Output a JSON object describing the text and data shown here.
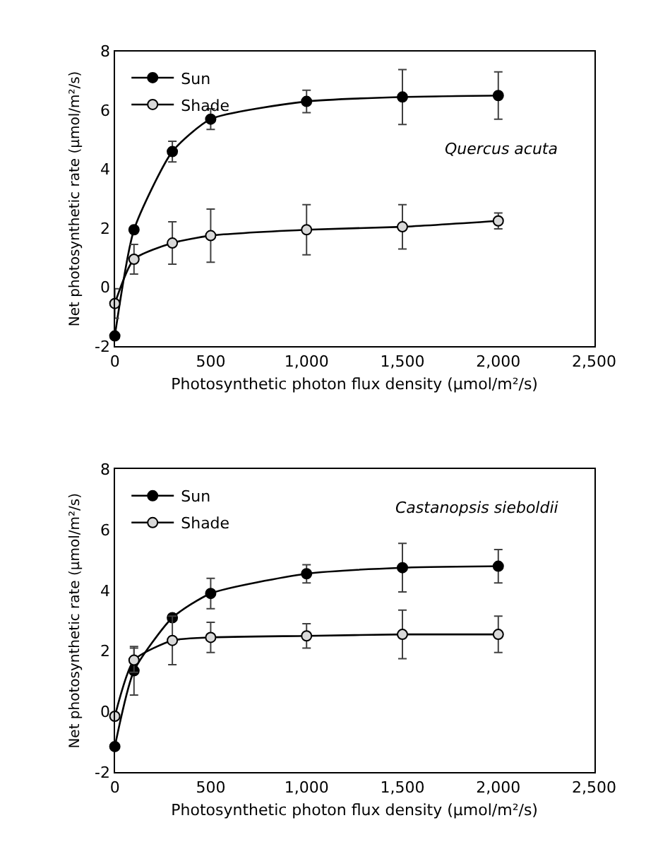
{
  "chart_data": [
    {
      "type": "line",
      "xlabel": "Photosynthetic photon flux density (μmol/m²/s)",
      "ylabel": "Net photosynthetic rate (μmol/m²/s)",
      "annotations": [
        "Quercus acuta"
      ],
      "x": [
        0,
        100,
        300,
        500,
        1000,
        1500,
        2000
      ],
      "xlim": [
        0,
        2500
      ],
      "xticks": [
        0,
        {
          "value": 500,
          "label": "500"
        },
        {
          "value": 1000,
          "label": "1,000"
        },
        {
          "value": 1500,
          "label": "1,500"
        },
        {
          "value": 2000,
          "label": "2,000"
        },
        {
          "value": 2500,
          "label": "2,500"
        }
      ],
      "ylim": [
        -2,
        8
      ],
      "yticks": [
        -2,
        0,
        2,
        4,
        6,
        8
      ],
      "legend": "top left",
      "marker": "circle",
      "line_style": "solid",
      "series": [
        {
          "name": "Sun",
          "color": "#000000",
          "values": [
            -1.65,
            1.95,
            4.6,
            5.7,
            6.3,
            6.45,
            6.5
          ],
          "errors": [
            null,
            null,
            0.35,
            0.35,
            0.38,
            0.93,
            0.8
          ]
        },
        {
          "name": "Shade",
          "color": "#d9d9d9",
          "values": [
            -0.55,
            0.95,
            1.5,
            1.75,
            1.95,
            2.05,
            2.25
          ],
          "errors": [
            0.5,
            0.5,
            0.72,
            0.9,
            0.85,
            0.75,
            0.27
          ]
        }
      ]
    },
    {
      "type": "line",
      "xlabel": "Photosynthetic photon flux density (μmol/m²/s)",
      "ylabel": "Net photosynthetic rate (μmol/m²/s)",
      "annotations": [
        "Castanopsis sieboldii"
      ],
      "x": [
        0,
        100,
        300,
        500,
        1000,
        1500,
        2000
      ],
      "xlim": [
        0,
        2500
      ],
      "xticks": [
        0,
        {
          "value": 500,
          "label": "500"
        },
        {
          "value": 1000,
          "label": "1,000"
        },
        {
          "value": 1500,
          "label": "1,500"
        },
        {
          "value": 2000,
          "label": "2,000"
        },
        {
          "value": 2500,
          "label": "2,500"
        }
      ],
      "ylim": [
        -2,
        8
      ],
      "yticks": [
        -2,
        0,
        2,
        4,
        6,
        8
      ],
      "legend": "top left",
      "marker": "circle",
      "line_style": "solid",
      "series": [
        {
          "name": "Sun",
          "color": "#000000",
          "values": [
            -1.15,
            1.35,
            3.1,
            3.9,
            4.55,
            4.75,
            4.8
          ],
          "errors": [
            null,
            0.8,
            null,
            0.5,
            0.3,
            0.8,
            0.55
          ]
        },
        {
          "name": "Shade",
          "color": "#d9d9d9",
          "values": [
            -0.15,
            1.7,
            2.35,
            2.45,
            2.5,
            2.55,
            2.55
          ],
          "errors": [
            null,
            0.4,
            0.8,
            0.5,
            0.4,
            0.8,
            0.6
          ]
        }
      ]
    }
  ]
}
